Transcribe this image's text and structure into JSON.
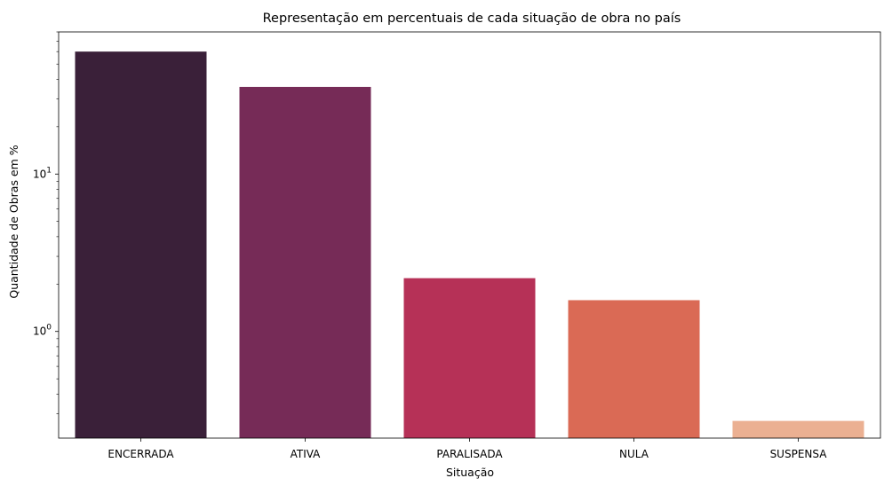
{
  "chart_data": {
    "type": "bar",
    "title": "Representação em percentuais de cada situação de obra no país",
    "xlabel": "Situação",
    "ylabel": "Quantidade de Obras em %",
    "yscale": "log",
    "ylim": [
      0.21,
      80
    ],
    "grid": false,
    "categories": [
      "ENCERRADA",
      "ATIVA",
      "PARALISADA",
      "NULA",
      "SUSPENSA"
    ],
    "values": [
      60.0,
      35.8,
      2.18,
      1.58,
      0.27
    ],
    "colors": [
      "#3a2039",
      "#762b57",
      "#b63157",
      "#da6a55",
      "#ebb092"
    ],
    "y_major_ticks": [
      {
        "value": 1,
        "base": "10",
        "exp": "0"
      },
      {
        "value": 10,
        "base": "10",
        "exp": "1"
      }
    ]
  }
}
